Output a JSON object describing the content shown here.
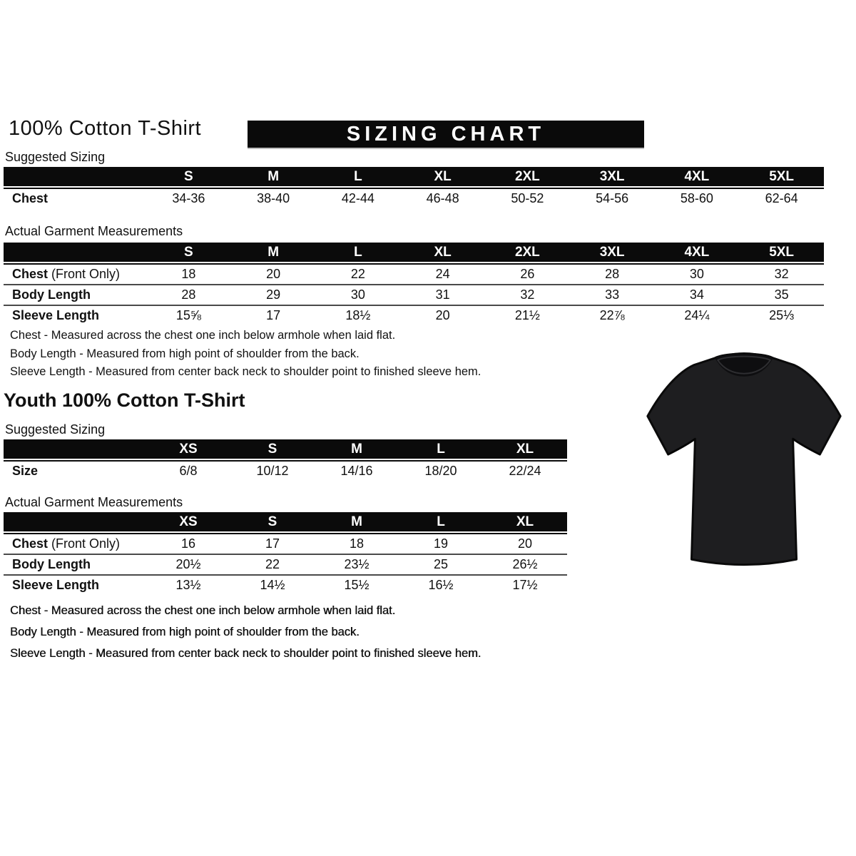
{
  "colors": {
    "page_bg": "#ffffff",
    "text": "#111111",
    "bar_black": "#0b0b0b",
    "banner_bg": "#0a0a0a",
    "banner_text": "#ffffff",
    "separator": "#4a4a4a",
    "tshirt_fill": "#1e1e20"
  },
  "adult": {
    "title": "100% Cotton T-Shirt",
    "banner": "SIZING CHART",
    "suggested": {
      "label": "Suggested Sizing",
      "sizes": [
        "S",
        "M",
        "L",
        "XL",
        "2XL",
        "3XL",
        "4XL",
        "5XL"
      ],
      "rows": [
        {
          "label": "Chest",
          "values": [
            "34-36",
            "38-40",
            "42-44",
            "46-48",
            "50-52",
            "54-56",
            "58-60",
            "62-64"
          ]
        }
      ]
    },
    "actual": {
      "label": "Actual Garment Measurements",
      "sizes": [
        "S",
        "M",
        "L",
        "XL",
        "2XL",
        "3XL",
        "4XL",
        "5XL"
      ],
      "rows": [
        {
          "label": "Chest",
          "suffix": " (Front Only)",
          "values": [
            "18",
            "20",
            "22",
            "24",
            "26",
            "28",
            "30",
            "32"
          ]
        },
        {
          "label": "Body Length",
          "values": [
            "28",
            "29",
            "30",
            "31",
            "32",
            "33",
            "34",
            "35"
          ]
        },
        {
          "label": "Sleeve Length",
          "values": [
            "15⅝",
            "17",
            "18½",
            "20",
            "21½",
            "22⅞",
            "24¼",
            "25⅓"
          ]
        }
      ]
    },
    "notes": [
      "Chest - Measured across the chest one inch below armhole when laid flat.",
      "Body Length - Measured from high point of shoulder from the back.",
      "Sleeve Length - Measured from center back neck to shoulder point to finished sleeve hem."
    ]
  },
  "youth": {
    "title": "Youth 100% Cotton T-Shirt",
    "suggested": {
      "label": "Suggested Sizing",
      "sizes": [
        "XS",
        "S",
        "M",
        "L",
        "XL"
      ],
      "rows": [
        {
          "label": "Size",
          "values": [
            "6/8",
            "10/12",
            "14/16",
            "18/20",
            "22/24"
          ]
        }
      ]
    },
    "actual": {
      "label": "Actual Garment Measurements",
      "sizes": [
        "XS",
        "S",
        "M",
        "L",
        "XL"
      ],
      "rows": [
        {
          "label": "Chest",
          "suffix": " (Front Only)",
          "values": [
            "16",
            "17",
            "18",
            "19",
            "20"
          ]
        },
        {
          "label": "Body Length",
          "values": [
            "20½",
            "22",
            "23½",
            "25",
            "26½"
          ]
        },
        {
          "label": "Sleeve Length",
          "values": [
            "13½",
            "14½",
            "15½",
            "16½",
            "17½"
          ]
        }
      ]
    },
    "notes": [
      "Chest - Measured across the chest one inch below armhole when laid flat.",
      "Body Length - Measured from high point of shoulder from the back.",
      "Sleeve Length - Measured from center back neck to shoulder point to finished sleeve hem."
    ]
  },
  "tshirt_image": "black-cotton-tshirt-photo"
}
